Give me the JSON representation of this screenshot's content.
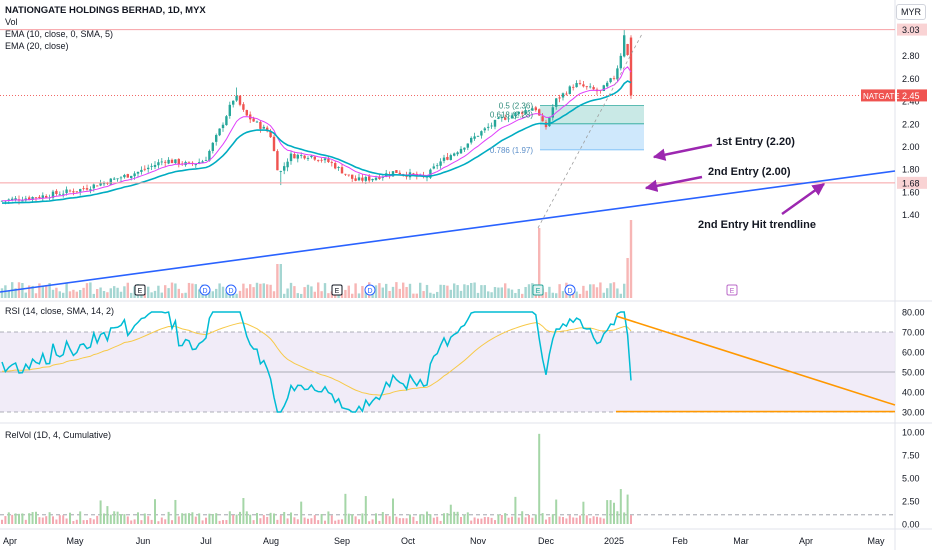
{
  "header": {
    "title": "NATIONGATE HOLDINGS BERHAD, 1D, MYX",
    "vol_label": "Vol",
    "ema1_label": "EMA (10, close, 0, SMA, 5)",
    "ema2_label": "EMA (20, close)",
    "currency": "MYR"
  },
  "colors": {
    "up": "#26a69a",
    "down": "#ef5350",
    "ema10": "#e040fb",
    "ema20": "#00acc1",
    "trendline": "#2962ff",
    "rsi": "#00bcd4",
    "rsi_ma": "#f7c948",
    "rsi_band": "#ede7f6",
    "resistance": "#f7a1a4",
    "fib_green": "#b2dfdb",
    "fib_blue": "#bbdefb",
    "orange": "#ff9800",
    "arrow": "#9c27b0",
    "axis": "#131722"
  },
  "main_chart": {
    "ticker_badge": "NATGATE",
    "last_price_label": "2.45",
    "price_ticks": [
      "3.03",
      "2.80",
      "2.60",
      "2.40",
      "2.20",
      "2.00",
      "1.80",
      "1.68",
      "1.60",
      "1.40"
    ],
    "fib_labels": [
      "0.5 (2.36)",
      "0.618 (2.28)",
      "0.786 (1.97)"
    ],
    "annotations": [
      "1st Entry (2.20)",
      "2nd Entry (2.00)",
      "2nd Entry Hit trendline"
    ],
    "event_markers": [
      "E",
      "D",
      "D",
      "E",
      "D",
      "E",
      "D",
      "E"
    ]
  },
  "rsi_panel": {
    "label": "RSI (14, close, SMA, 14, 2)",
    "ticks": [
      "80.00",
      "70.00",
      "60.00",
      "50.00",
      "40.00",
      "30.00"
    ]
  },
  "relvol_panel": {
    "label": "RelVol (1D, 4, Cumulative)",
    "ticks": [
      "10.00",
      "7.50",
      "5.00",
      "2.50",
      "0.00"
    ]
  },
  "x_axis": {
    "labels": [
      "Apr",
      "May",
      "Jun",
      "Jul",
      "Aug",
      "Sep",
      "Oct",
      "Nov",
      "Dec",
      "2025",
      "Feb",
      "Mar",
      "Apr",
      "May"
    ]
  },
  "chart_data": {
    "type": "line",
    "title": "NATIONGATE HOLDINGS BERHAD, 1D, MYX",
    "x": [
      "Apr",
      "May",
      "Jun",
      "Jul",
      "Aug",
      "Sep",
      "Oct",
      "Nov",
      "Dec",
      "2025",
      "Feb",
      "Mar",
      "Apr",
      "May"
    ],
    "ylim": [
      1.28,
      3.1
    ],
    "series": [
      {
        "name": "EMA (10, close, 0, SMA, 5)",
        "values": [
          1.55,
          1.63,
          1.8,
          2.23,
          2.02,
          1.72,
          1.72,
          2.1,
          2.38,
          2.62,
          null,
          null,
          null,
          null
        ]
      },
      {
        "name": "EMA (20, close)",
        "values": [
          1.53,
          1.6,
          1.76,
          2.14,
          2.03,
          1.75,
          1.72,
          2.05,
          2.3,
          2.54,
          null,
          null,
          null,
          null
        ]
      }
    ],
    "last_close": 2.45,
    "resistance_high": 3.03,
    "support": 1.68,
    "fib_levels": {
      "0.5": 2.36,
      "0.618": 2.28,
      "0.786": 1.97
    },
    "rsi": {
      "ylim": [
        25,
        85
      ],
      "values": [
        62,
        68,
        65,
        42,
        33,
        40,
        45,
        65,
        74,
        70,
        48,
        null,
        null,
        null
      ],
      "levels": [
        70,
        50,
        30
      ]
    },
    "relvol": {
      "ylim": [
        0,
        10.5
      ],
      "values": [
        0.8,
        1.0,
        0.8,
        1.6,
        1.2,
        0.8,
        0.7,
        1.0,
        9.8,
        3.8,
        null,
        null,
        null,
        null
      ]
    },
    "legend": "top-left"
  }
}
